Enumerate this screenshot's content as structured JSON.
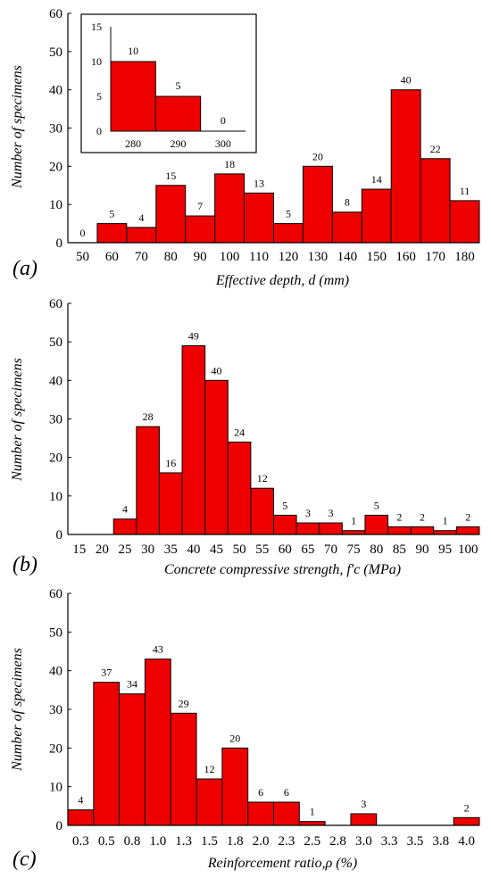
{
  "colors": {
    "bar": "#ee0000",
    "bar_edge": "#000000",
    "axis": "#000000",
    "text": "#000000"
  },
  "chart_data": [
    {
      "id": "a",
      "panel_label": "(a)",
      "type": "bar",
      "xlabel": "Effective depth, d (mm)",
      "ylabel": "Number of specimens",
      "ylim": [
        0,
        60
      ],
      "yticks": [
        "0",
        "10",
        "20",
        "30",
        "40",
        "50",
        "60"
      ],
      "xticks": [
        "50",
        "60",
        "70",
        "80",
        "90",
        "100",
        "110",
        "120",
        "130",
        "140",
        "150",
        "160",
        "170",
        "180"
      ],
      "values": [
        0,
        5,
        4,
        15,
        7,
        18,
        13,
        5,
        20,
        8,
        14,
        40,
        22,
        11
      ],
      "data_labels": [
        "0",
        "5",
        "4",
        "15",
        "7",
        "18",
        "13",
        "5",
        "20",
        "8",
        "14",
        "40",
        "22",
        "11"
      ],
      "inset": {
        "type": "bar",
        "xticks": [
          "280",
          "290",
          "300"
        ],
        "values": [
          10,
          5,
          0
        ],
        "data_labels": [
          "10",
          "5",
          "0"
        ],
        "ylim": [
          0,
          15
        ],
        "yticks": [
          "0",
          "5",
          "10",
          "15"
        ]
      }
    },
    {
      "id": "b",
      "panel_label": "(b)",
      "type": "bar",
      "xlabel": "Concrete compressive strength, f'c (MPa)",
      "ylabel": "Number of specimens",
      "ylim": [
        0,
        60
      ],
      "yticks": [
        "0",
        "10",
        "20",
        "30",
        "40",
        "50",
        "60"
      ],
      "xticks": [
        "15",
        "20",
        "25",
        "30",
        "35",
        "40",
        "45",
        "50",
        "55",
        "60",
        "65",
        "70",
        "75",
        "80",
        "85",
        "90",
        "95",
        "100"
      ],
      "values": [
        0,
        0,
        4,
        28,
        16,
        49,
        40,
        24,
        12,
        5,
        3,
        3,
        1,
        5,
        2,
        2,
        1,
        2
      ],
      "data_labels": [
        "",
        "",
        "4",
        "28",
        "16",
        "49",
        "40",
        "24",
        "12",
        "5",
        "3",
        "3",
        "1",
        "5",
        "2",
        "2",
        "1",
        "2"
      ]
    },
    {
      "id": "c",
      "panel_label": "(c)",
      "type": "bar",
      "xlabel": "Reinforcement ratio,ρ (%)",
      "ylabel": "Number of specimens",
      "ylim": [
        0,
        60
      ],
      "yticks": [
        "0",
        "10",
        "20",
        "30",
        "40",
        "50",
        "60"
      ],
      "xticks": [
        "0.3",
        "0.5",
        "0.8",
        "1.0",
        "1.3",
        "1.5",
        "1.8",
        "2.0",
        "2.3",
        "2.5",
        "2.8",
        "3.0",
        "3.3",
        "3.5",
        "3.8",
        "4.0"
      ],
      "values": [
        4,
        37,
        34,
        43,
        29,
        12,
        20,
        6,
        6,
        1,
        0,
        3,
        0,
        0,
        0,
        2
      ],
      "data_labels": [
        "4",
        "37",
        "34",
        "43",
        "29",
        "12",
        "20",
        "6",
        "6",
        "1",
        "",
        "3",
        "",
        "",
        "",
        "2"
      ]
    }
  ]
}
